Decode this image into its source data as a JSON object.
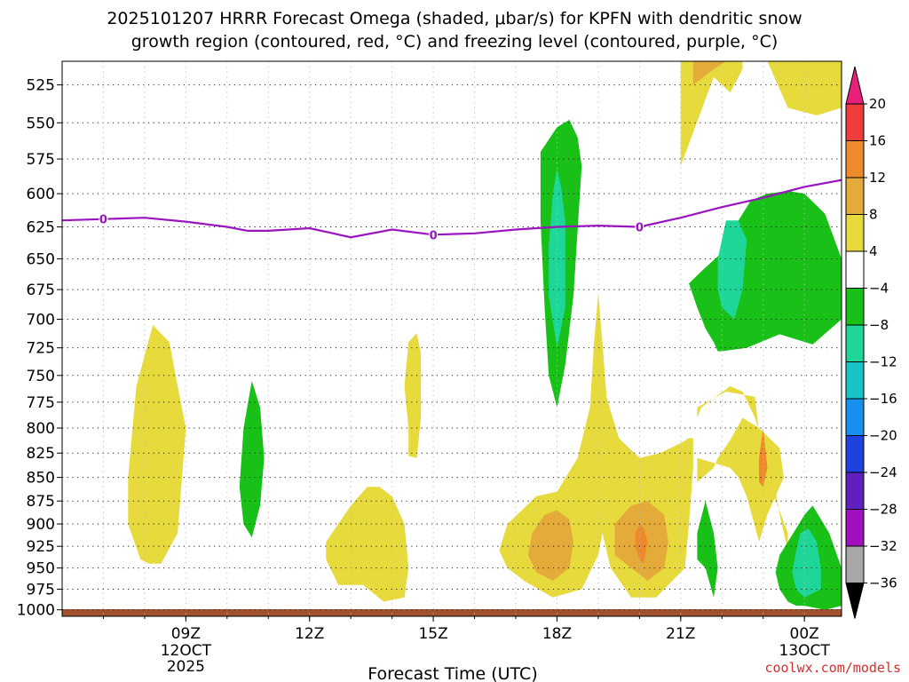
{
  "chart_data": {
    "type": "time-height contour",
    "title_line1": "2025101207 HRRR Forecast Omega (shaded, μbar/s) for KPFN with dendritic snow",
    "title_line2": "growth region (contoured, red, °C) and freezing level (contoured, purple, °C)",
    "xlabel": "Forecast Time (UTC)",
    "credit": "coolwx.com/models",
    "x_range_hours": [
      6.0,
      24.9
    ],
    "y_range_hpa": [
      1008,
      510
    ],
    "y_ticks": [
      525,
      550,
      575,
      600,
      625,
      650,
      675,
      700,
      725,
      750,
      775,
      800,
      825,
      850,
      875,
      900,
      925,
      950,
      975,
      1000
    ],
    "x_ticks": [
      {
        "hour": 9,
        "label": "09Z",
        "sub1": "12OCT",
        "sub2": "2025"
      },
      {
        "hour": 12,
        "label": "12Z",
        "sub1": "",
        "sub2": ""
      },
      {
        "hour": 15,
        "label": "15Z",
        "sub1": "",
        "sub2": ""
      },
      {
        "hour": 18,
        "label": "18Z",
        "sub1": "",
        "sub2": ""
      },
      {
        "hour": 21,
        "label": "21Z",
        "sub1": "",
        "sub2": ""
      },
      {
        "hour": 24,
        "label": "00Z",
        "sub1": "13OCT",
        "sub2": ""
      }
    ],
    "colorbar": {
      "labels": [
        "20",
        "16",
        "12",
        "8",
        "4",
        "−4",
        "−8",
        "−12",
        "−16",
        "−20",
        "−24",
        "−28",
        "−32",
        "−36"
      ],
      "colors": [
        "#e8207a",
        "#f03c3c",
        "#ee8a2c",
        "#e4aa3a",
        "#e6da3c",
        "#ffffff",
        "#18c018",
        "#1ed698",
        "#16c4c4",
        "#1890f0",
        "#2040e0",
        "#6020c0",
        "#a010c0",
        "#a8a8a8",
        "#000000"
      ]
    },
    "fill_colors": {
      "yellow": "#e6da3c",
      "gold": "#e4aa3a",
      "orange": "#ee8a2c",
      "green": "#18c018",
      "teal": "#1ed698",
      "ground": "#a0522d",
      "freezing": "#9a14c0"
    },
    "freezing_level": {
      "label": "0",
      "hours": [
        6.0,
        7.0,
        8.0,
        9.0,
        10.0,
        10.5,
        11.0,
        12.0,
        13.0,
        14.0,
        15.0,
        16.0,
        17.0,
        18.0,
        19.0,
        20.0,
        21.0,
        22.0,
        23.0,
        24.0,
        24.9
      ],
      "pressure": [
        620,
        619,
        618,
        621,
        625,
        628,
        628,
        626,
        633,
        627,
        631,
        630,
        627,
        625,
        624,
        625,
        618,
        610,
        603,
        595,
        590
      ],
      "label_hours": [
        7.0,
        15.0,
        20.0
      ]
    },
    "omega_regions": [
      {
        "color": "yellow",
        "hours": [
          7.9,
          8.1,
          8.4,
          8.8,
          9.0,
          8.8,
          8.6,
          8.2,
          7.8,
          7.6,
          7.6
        ],
        "pressure": [
          940,
          945,
          945,
          910,
          800,
          760,
          720,
          705,
          760,
          850,
          900
        ]
      },
      {
        "color": "green",
        "hours": [
          10.4,
          10.6,
          10.8,
          10.9,
          10.8,
          10.6,
          10.4,
          10.3
        ],
        "pressure": [
          900,
          915,
          880,
          830,
          780,
          755,
          800,
          860
        ]
      },
      {
        "color": "yellow",
        "hours": [
          13.3,
          13.8,
          14.3,
          14.4,
          14.3,
          14.0,
          13.7,
          13.4,
          13.0,
          12.4,
          12.4,
          12.7
        ],
        "pressure": [
          970,
          990,
          985,
          950,
          900,
          870,
          860,
          860,
          880,
          920,
          940,
          970
        ]
      },
      {
        "color": "yellow",
        "hours": [
          14.4,
          14.6,
          14.7,
          14.7,
          14.6,
          14.4,
          14.3,
          14.4
        ],
        "pressure": [
          828,
          830,
          790,
          730,
          712,
          720,
          760,
          800
        ]
      },
      {
        "color": "green",
        "hours": [
          17.8,
          18.0,
          18.2,
          18.4,
          18.6,
          18.5,
          18.3,
          18.0,
          17.6,
          17.6,
          17.7
        ],
        "pressure": [
          750,
          780,
          740,
          680,
          580,
          560,
          548,
          553,
          570,
          620,
          690
        ]
      },
      {
        "color": "teal",
        "hours": [
          17.8,
          18.0,
          18.2,
          18.2,
          18.1,
          18.0,
          17.9,
          17.8
        ],
        "pressure": [
          680,
          725,
          690,
          620,
          595,
          582,
          600,
          640
        ]
      },
      {
        "color": "yellow",
        "hours": [
          17.2,
          17.9,
          18.6,
          19.0,
          19.1,
          19.3,
          19.8,
          20.4,
          20.7,
          21.1,
          21.2,
          21.3,
          21.3,
          21.2,
          21.0,
          20.5,
          20.0,
          19.5,
          19.2,
          19.1,
          19.0,
          18.9,
          18.8,
          18.5,
          18.0,
          17.5,
          16.8,
          16.6,
          16.8
        ],
        "pressure": [
          965,
          985,
          975,
          935,
          910,
          950,
          985,
          985,
          970,
          950,
          900,
          840,
          810,
          810,
          815,
          825,
          830,
          810,
          770,
          720,
          678,
          720,
          780,
          830,
          865,
          870,
          900,
          930,
          950
        ]
      },
      {
        "color": "gold",
        "hours": [
          17.5,
          17.9,
          18.3,
          18.4,
          18.3,
          18.0,
          17.7,
          17.4,
          17.3
        ],
        "pressure": [
          955,
          965,
          950,
          920,
          895,
          885,
          890,
          910,
          935
        ]
      },
      {
        "color": "gold",
        "hours": [
          19.8,
          20.2,
          20.6,
          20.7,
          20.6,
          20.2,
          19.8,
          19.4,
          19.4
        ],
        "pressure": [
          950,
          965,
          950,
          920,
          890,
          875,
          880,
          900,
          935
        ]
      },
      {
        "color": "orange",
        "hours": [
          20.0,
          20.1,
          20.2,
          20.1,
          20.0,
          19.9,
          19.9
        ],
        "pressure": [
          940,
          945,
          920,
          905,
          900,
          910,
          925
        ]
      },
      {
        "color": "yellow",
        "hours": [
          21.4,
          22.1,
          22.8,
          23.0,
          23.6,
          23.6,
          23.4,
          23.2,
          22.8,
          22.5,
          22.2,
          21.5,
          21.2,
          21.4
        ],
        "pressure": [
          780,
          765,
          770,
          840,
          910,
          930,
          890,
          840,
          790,
          765,
          760,
          780,
          810,
          790
        ]
      },
      {
        "color": "yellow",
        "hours": [
          21.4,
          21.8,
          21.9,
          22.2,
          22.5,
          22.9,
          23.4,
          23.5,
          23.1,
          22.9,
          22.6,
          22.4,
          22.2,
          21.8,
          21.4
        ],
        "pressure": [
          855,
          840,
          830,
          812,
          790,
          800,
          820,
          850,
          890,
          920,
          870,
          850,
          840,
          835,
          830
        ]
      },
      {
        "color": "orange",
        "hours": [
          22.9,
          23.0,
          23.1,
          23.0,
          22.9
        ],
        "pressure": [
          855,
          860,
          840,
          800,
          830
        ]
      },
      {
        "color": "green",
        "hours": [
          21.6,
          21.8,
          21.9,
          21.8,
          21.6,
          21.4,
          21.4
        ],
        "pressure": [
          950,
          985,
          950,
          910,
          875,
          910,
          940
        ]
      },
      {
        "color": "green",
        "hours": [
          24.0,
          24.5,
          24.9,
          24.9,
          24.6,
          24.2,
          24.0,
          23.8,
          23.4,
          23.3,
          23.4,
          23.6,
          23.8
        ],
        "pressure": [
          995,
          1000,
          995,
          950,
          910,
          880,
          890,
          905,
          935,
          955,
          975,
          990,
          995
        ]
      },
      {
        "color": "teal",
        "hours": [
          23.8,
          24.0,
          24.4,
          24.4,
          24.3,
          24.1,
          23.9,
          23.8,
          23.7
        ],
        "pressure": [
          975,
          985,
          975,
          950,
          920,
          905,
          910,
          930,
          955
        ]
      },
      {
        "color": "green",
        "hours": [
          22.0,
          22.6,
          23.4,
          24.2,
          24.9,
          24.9,
          24.5,
          24.0,
          23.6,
          23.1,
          22.7,
          22.4,
          22.0,
          21.5,
          21.2,
          21.4,
          21.6,
          21.8,
          21.9
        ],
        "pressure": [
          728,
          725,
          713,
          722,
          700,
          650,
          615,
          600,
          598,
          600,
          605,
          620,
          645,
          660,
          670,
          690,
          708,
          720,
          728
        ]
      },
      {
        "color": "teal",
        "hours": [
          22.0,
          22.3,
          22.5,
          22.6,
          22.4,
          22.1,
          21.9,
          21.9
        ],
        "pressure": [
          690,
          700,
          675,
          635,
          620,
          620,
          650,
          675
        ]
      },
      {
        "color": "yellow",
        "hours": [
          21.0,
          21.8,
          22.2,
          22.5,
          22.5,
          21.0
        ],
        "pressure": [
          580,
          520,
          530,
          515,
          510,
          510
        ]
      },
      {
        "color": "gold",
        "hours": [
          21.3,
          21.8,
          22.1,
          22.1,
          21.3
        ],
        "pressure": [
          525,
          515,
          510,
          510,
          510
        ]
      },
      {
        "color": "yellow",
        "hours": [
          23.1,
          23.6,
          24.3,
          24.9,
          24.9,
          23.1
        ],
        "pressure": [
          510,
          540,
          545,
          540,
          510,
          510
        ]
      }
    ]
  }
}
